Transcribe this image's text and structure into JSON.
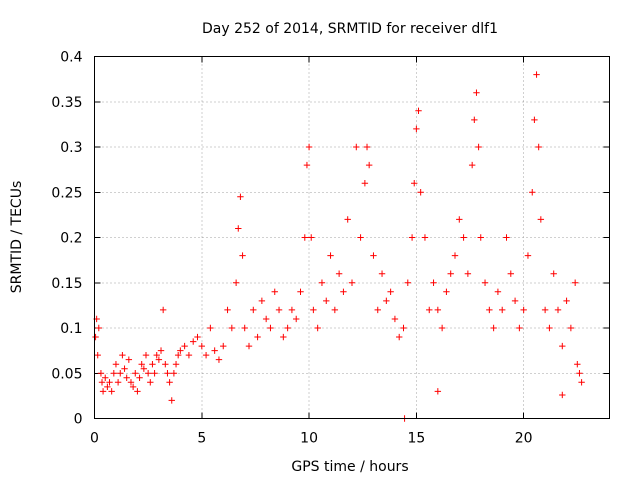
{
  "chart_data": {
    "type": "scatter",
    "title": "Day 252 of 2014, SRMTID for receiver dlf1",
    "xlabel": "GPS time / hours",
    "ylabel": "SRMTID / TECUs",
    "xlim": [
      0,
      24
    ],
    "ylim": [
      0,
      0.4
    ],
    "x_ticks": [
      0,
      5,
      10,
      15,
      20
    ],
    "x_tick_labels": [
      "0",
      "5",
      "10",
      "15",
      "20"
    ],
    "y_ticks": [
      0,
      0.05,
      0.1,
      0.15,
      0.2,
      0.25,
      0.3,
      0.35,
      0.4
    ],
    "y_tick_labels": [
      "0",
      "0.05",
      "0.1",
      "0.15",
      "0.2",
      "0.25",
      "0.3",
      "0.35",
      "0.4"
    ],
    "grid": true,
    "marker": "+",
    "color": "#ff0000",
    "series": [
      {
        "name": "SRMTID",
        "points": [
          [
            0.05,
            0.09
          ],
          [
            0.1,
            0.11
          ],
          [
            0.15,
            0.07
          ],
          [
            0.2,
            0.1
          ],
          [
            0.3,
            0.05
          ],
          [
            0.35,
            0.04
          ],
          [
            0.4,
            0.03
          ],
          [
            0.5,
            0.045
          ],
          [
            0.6,
            0.035
          ],
          [
            0.7,
            0.04
          ],
          [
            0.8,
            0.03
          ],
          [
            0.9,
            0.05
          ],
          [
            1.0,
            0.06
          ],
          [
            1.1,
            0.04
          ],
          [
            1.2,
            0.05
          ],
          [
            1.3,
            0.07
          ],
          [
            1.4,
            0.055
          ],
          [
            1.5,
            0.045
          ],
          [
            1.6,
            0.065
          ],
          [
            1.7,
            0.04
          ],
          [
            1.8,
            0.035
          ],
          [
            1.9,
            0.05
          ],
          [
            2.0,
            0.03
          ],
          [
            2.1,
            0.045
          ],
          [
            2.2,
            0.06
          ],
          [
            2.3,
            0.055
          ],
          [
            2.4,
            0.07
          ],
          [
            2.5,
            0.05
          ],
          [
            2.6,
            0.04
          ],
          [
            2.7,
            0.06
          ],
          [
            2.8,
            0.05
          ],
          [
            2.9,
            0.07
          ],
          [
            3.0,
            0.065
          ],
          [
            3.1,
            0.075
          ],
          [
            3.2,
            0.12
          ],
          [
            3.3,
            0.06
          ],
          [
            3.4,
            0.05
          ],
          [
            3.5,
            0.04
          ],
          [
            3.6,
            0.02
          ],
          [
            3.7,
            0.05
          ],
          [
            3.8,
            0.06
          ],
          [
            3.9,
            0.07
          ],
          [
            4.0,
            0.075
          ],
          [
            4.2,
            0.08
          ],
          [
            4.4,
            0.07
          ],
          [
            4.6,
            0.085
          ],
          [
            4.8,
            0.09
          ],
          [
            5.0,
            0.08
          ],
          [
            5.2,
            0.07
          ],
          [
            5.4,
            0.1
          ],
          [
            5.6,
            0.075
          ],
          [
            5.8,
            0.065
          ],
          [
            6.0,
            0.08
          ],
          [
            6.2,
            0.12
          ],
          [
            6.4,
            0.1
          ],
          [
            6.6,
            0.15
          ],
          [
            6.7,
            0.21
          ],
          [
            6.8,
            0.245
          ],
          [
            6.9,
            0.18
          ],
          [
            7.0,
            0.1
          ],
          [
            7.2,
            0.08
          ],
          [
            7.4,
            0.12
          ],
          [
            7.6,
            0.09
          ],
          [
            7.8,
            0.13
          ],
          [
            8.0,
            0.11
          ],
          [
            8.2,
            0.1
          ],
          [
            8.4,
            0.14
          ],
          [
            8.6,
            0.12
          ],
          [
            8.8,
            0.09
          ],
          [
            9.0,
            0.1
          ],
          [
            9.2,
            0.12
          ],
          [
            9.4,
            0.11
          ],
          [
            9.6,
            0.14
          ],
          [
            9.8,
            0.2
          ],
          [
            9.9,
            0.28
          ],
          [
            10.0,
            0.3
          ],
          [
            10.1,
            0.2
          ],
          [
            10.2,
            0.12
          ],
          [
            10.4,
            0.1
          ],
          [
            10.6,
            0.15
          ],
          [
            10.8,
            0.13
          ],
          [
            11.0,
            0.18
          ],
          [
            11.2,
            0.12
          ],
          [
            11.4,
            0.16
          ],
          [
            11.6,
            0.14
          ],
          [
            11.8,
            0.22
          ],
          [
            12.0,
            0.15
          ],
          [
            12.2,
            0.3
          ],
          [
            12.4,
            0.2
          ],
          [
            12.6,
            0.26
          ],
          [
            12.7,
            0.3
          ],
          [
            12.8,
            0.28
          ],
          [
            13.0,
            0.18
          ],
          [
            13.2,
            0.12
          ],
          [
            13.4,
            0.16
          ],
          [
            13.6,
            0.13
          ],
          [
            13.8,
            0.14
          ],
          [
            14.0,
            0.11
          ],
          [
            14.2,
            0.09
          ],
          [
            14.4,
            0.1
          ],
          [
            14.6,
            0.15
          ],
          [
            14.8,
            0.2
          ],
          [
            14.9,
            0.26
          ],
          [
            15.0,
            0.32
          ],
          [
            15.1,
            0.34
          ],
          [
            15.2,
            0.25
          ],
          [
            15.4,
            0.2
          ],
          [
            15.6,
            0.12
          ],
          [
            15.8,
            0.15
          ],
          [
            16.0,
            0.12
          ],
          [
            16.2,
            0.1
          ],
          [
            16.4,
            0.14
          ],
          [
            16.6,
            0.16
          ],
          [
            16.8,
            0.18
          ],
          [
            17.0,
            0.22
          ],
          [
            17.2,
            0.2
          ],
          [
            17.4,
            0.16
          ],
          [
            17.6,
            0.28
          ],
          [
            17.7,
            0.33
          ],
          [
            17.8,
            0.36
          ],
          [
            17.9,
            0.3
          ],
          [
            18.0,
            0.2
          ],
          [
            18.2,
            0.15
          ],
          [
            18.4,
            0.12
          ],
          [
            18.6,
            0.1
          ],
          [
            18.8,
            0.14
          ],
          [
            19.0,
            0.12
          ],
          [
            19.2,
            0.2
          ],
          [
            19.4,
            0.16
          ],
          [
            19.6,
            0.13
          ],
          [
            19.8,
            0.1
          ],
          [
            20.0,
            0.12
          ],
          [
            20.2,
            0.18
          ],
          [
            20.4,
            0.25
          ],
          [
            20.5,
            0.33
          ],
          [
            20.6,
            0.38
          ],
          [
            20.7,
            0.3
          ],
          [
            20.8,
            0.22
          ],
          [
            21.0,
            0.12
          ],
          [
            21.2,
            0.1
          ],
          [
            21.4,
            0.16
          ],
          [
            21.6,
            0.12
          ],
          [
            21.8,
            0.08
          ],
          [
            22.0,
            0.13
          ],
          [
            22.2,
            0.1
          ],
          [
            22.4,
            0.15
          ],
          [
            22.5,
            0.06
          ],
          [
            22.6,
            0.05
          ],
          [
            22.7,
            0.04
          ],
          [
            14.45,
            0.0
          ],
          [
            16.0,
            0.03
          ],
          [
            21.8,
            0.026
          ]
        ]
      }
    ]
  }
}
